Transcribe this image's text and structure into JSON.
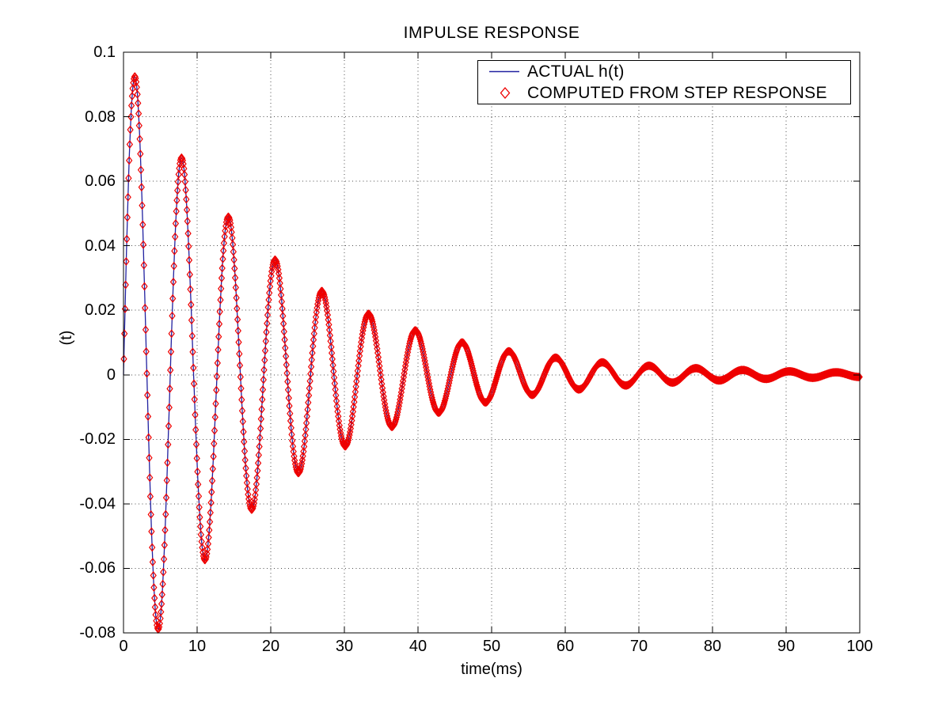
{
  "chart_data": {
    "type": "line",
    "title": "IMPULSE RESPONSE",
    "xlabel": "time(ms)",
    "ylabel": "(t)",
    "xlim": [
      0,
      100
    ],
    "ylim": [
      -0.08,
      0.1
    ],
    "xticks": [
      0,
      10,
      20,
      30,
      40,
      50,
      60,
      70,
      80,
      90,
      100
    ],
    "xtick_labels": [
      "0",
      "10",
      "20",
      "30",
      "40",
      "50",
      "60",
      "70",
      "80",
      "90",
      "100"
    ],
    "yticks": [
      0.1,
      0.08,
      0.06,
      0.04,
      0.02,
      0,
      -0.02,
      -0.04,
      -0.06,
      -0.08
    ],
    "ytick_labels": [
      "0.1",
      "0.08",
      "0.06",
      "0.04",
      "0.02",
      "0",
      "-0.02",
      "-0.04",
      "-0.06",
      "-0.08"
    ],
    "grid": "dotted",
    "grid_color": "#4d4d4d",
    "axis_color": "#000000",
    "background_color": "#ffffff",
    "series": [
      {
        "name": "ACTUAL h(t)",
        "type": "line",
        "color": "#2121a0",
        "line_width": 1.3,
        "model": {
          "formula": "h(t) = A * exp(-t/tau) * sin(2*PI*t/T)",
          "A": 0.1,
          "tau_ms": 20,
          "period_ms": 6.35,
          "t_start": 0,
          "t_end": 100,
          "dt": 0.1
        }
      },
      {
        "name": "COMPUTED FROM STEP RESPONSE",
        "type": "scatter",
        "marker": "open-diamond",
        "color": "#ee0000",
        "marker_width": 6.8,
        "marker_height": 9,
        "model": {
          "formula": "h(t) = A * exp(-t/tau) * sin(2*PI*t/T)",
          "A": 0.1,
          "tau_ms": 20,
          "period_ms": 6.35,
          "t_start": 0.05,
          "t_end": 100,
          "dt": 0.08
        },
        "peaks_read_from_chart": [
          [
            1.5,
            0.093
          ],
          [
            7.6,
            0.068
          ],
          [
            14.0,
            0.05
          ],
          [
            20.4,
            0.0365
          ],
          [
            26.7,
            0.027
          ],
          [
            33.0,
            0.0195
          ],
          [
            39.3,
            0.014
          ],
          [
            45.6,
            0.0105
          ],
          [
            51.9,
            0.008
          ],
          [
            58.1,
            0.006
          ],
          [
            64.4,
            0.0045
          ],
          [
            70.7,
            0.0035
          ],
          [
            77.0,
            0.0026
          ],
          [
            83.2,
            0.002
          ],
          [
            89.5,
            0.0015
          ],
          [
            95.8,
            0.0011
          ]
        ],
        "troughs_read_from_chart": [
          [
            4.7,
            -0.08
          ],
          [
            11.0,
            -0.058
          ],
          [
            17.4,
            -0.042
          ],
          [
            23.7,
            -0.031
          ],
          [
            30.0,
            -0.023
          ],
          [
            36.2,
            -0.017
          ],
          [
            42.5,
            -0.0125
          ],
          [
            48.8,
            -0.009
          ],
          [
            55.1,
            -0.007
          ],
          [
            61.3,
            -0.005
          ],
          [
            67.6,
            -0.004
          ],
          [
            73.9,
            -0.003
          ],
          [
            80.2,
            -0.0022
          ],
          [
            86.4,
            -0.0017
          ],
          [
            92.7,
            -0.0012
          ],
          [
            99.0,
            -0.0009
          ]
        ]
      }
    ],
    "legend": {
      "position": "top-right-inside",
      "entries": [
        {
          "label": "ACTUAL h(t)",
          "symbol": "line",
          "color": "#2121a0"
        },
        {
          "label": "COMPUTED FROM STEP RESPONSE",
          "symbol": "open-diamond",
          "color": "#ee0000"
        }
      ]
    }
  }
}
